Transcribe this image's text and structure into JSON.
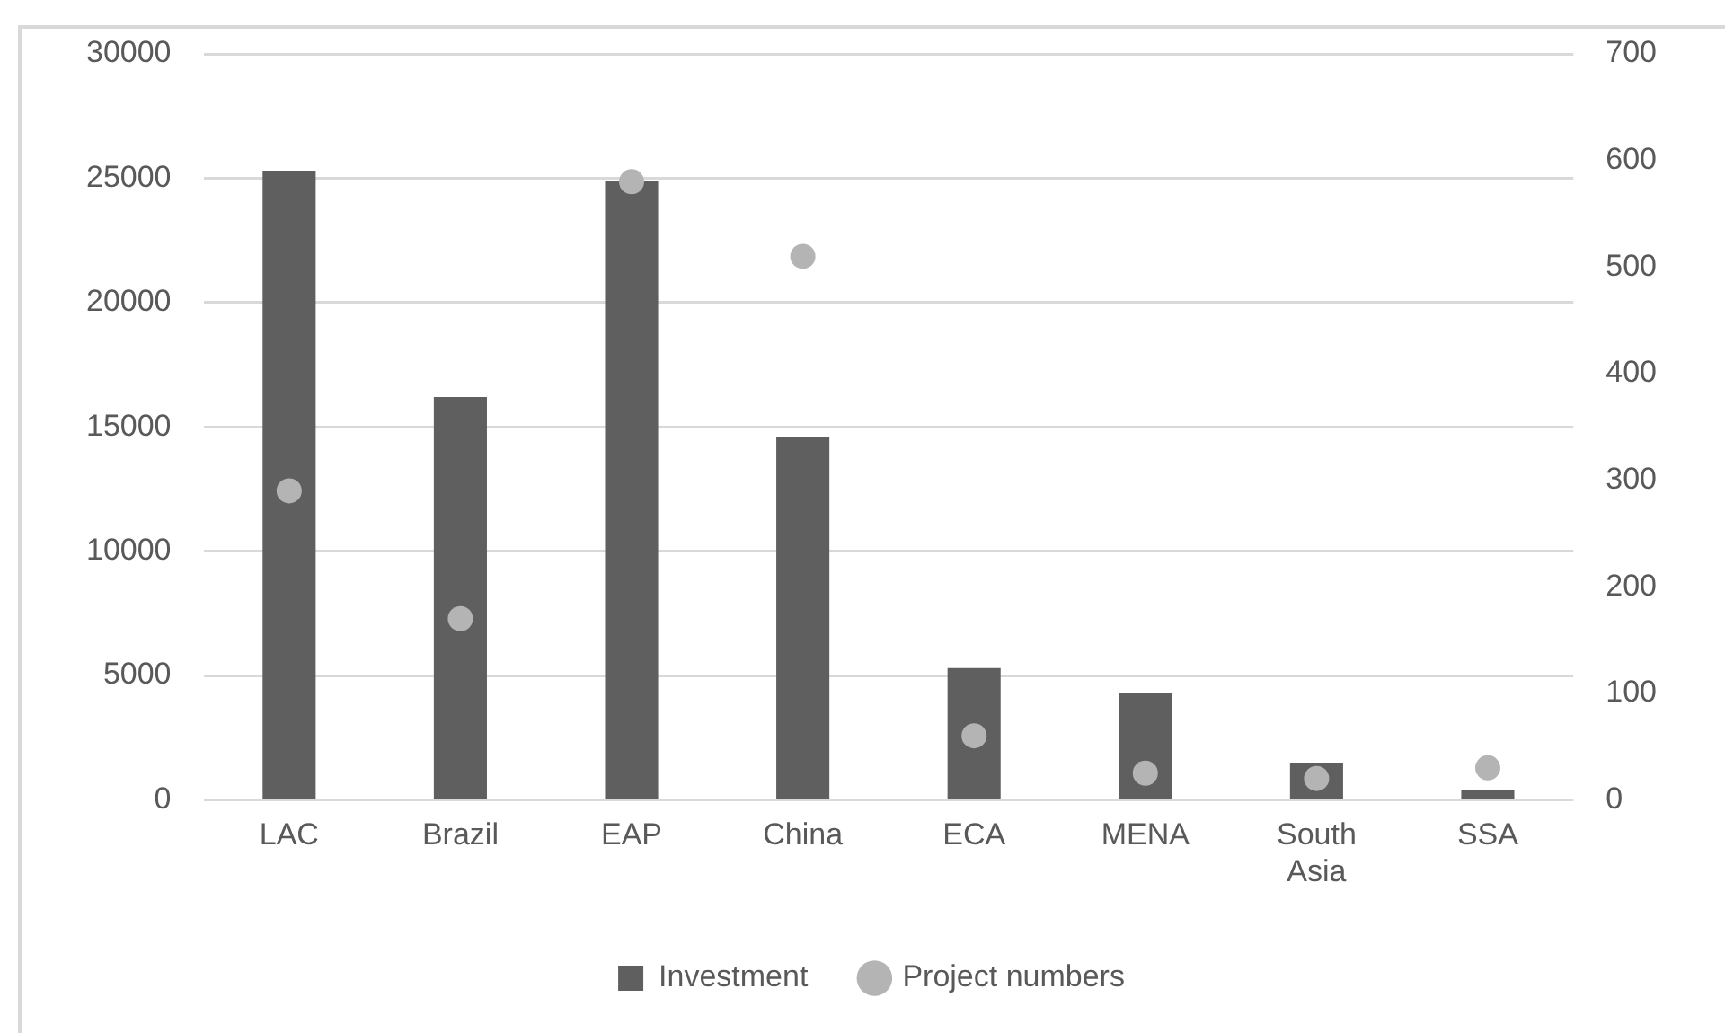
{
  "chart_data": {
    "type": "bar",
    "categories": [
      "LAC",
      "Brazil",
      "EAP",
      "China",
      "ECA",
      "MENA",
      "South Asia",
      "SSA"
    ],
    "series": [
      {
        "name": "Investment",
        "color": "#5f5f5f",
        "values": [
          25300,
          16200,
          24900,
          14600,
          5300,
          4300,
          1500,
          400
        ]
      },
      {
        "name": "Project numbers",
        "type": "scatter",
        "axis": "y2",
        "color": "#b4b4b4",
        "values": [
          290,
          170,
          580,
          510,
          60,
          25,
          20,
          30
        ]
      }
    ],
    "ylim": [
      0,
      30000
    ],
    "yticks": [
      0,
      5000,
      10000,
      15000,
      20000,
      25000,
      30000
    ],
    "y2lim": [
      0,
      700
    ],
    "y2ticks": [
      0,
      100,
      200,
      300,
      400,
      500,
      600,
      700
    ],
    "grid": "y",
    "legend": "bottom",
    "marker": "circle"
  }
}
